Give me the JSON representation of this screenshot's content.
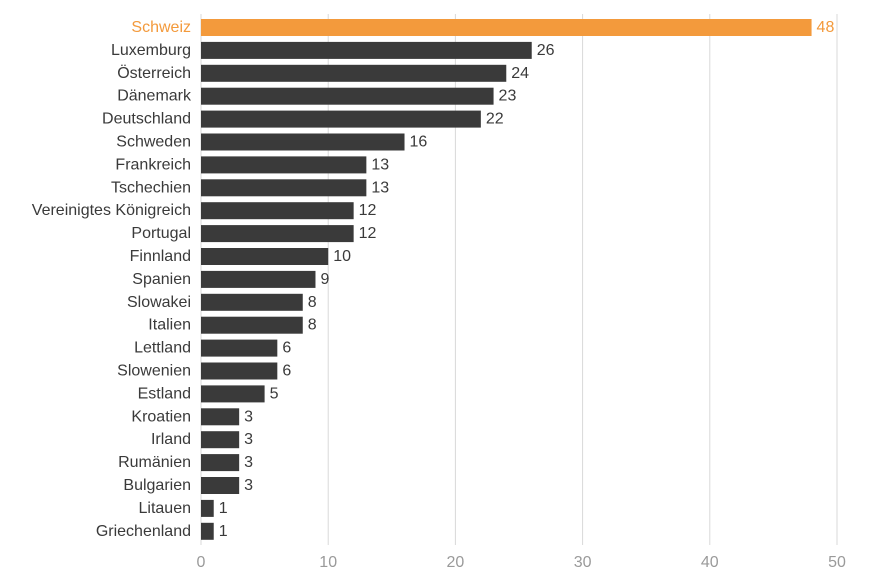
{
  "chart_data": {
    "type": "bar",
    "orientation": "horizontal",
    "categories": [
      "Schweiz",
      "Luxemburg",
      "Österreich",
      "Dänemark",
      "Deutschland",
      "Schweden",
      "Frankreich",
      "Tschechien",
      "Vereinigtes Königreich",
      "Portugal",
      "Finnland",
      "Spanien",
      "Slowakei",
      "Italien",
      "Lettland",
      "Slowenien",
      "Estland",
      "Kroatien",
      "Irland",
      "Rumänien",
      "Bulgarien",
      "Litauen",
      "Griechenland"
    ],
    "values": [
      48,
      26,
      24,
      23,
      22,
      16,
      13,
      13,
      12,
      12,
      10,
      9,
      8,
      8,
      6,
      6,
      5,
      3,
      3,
      3,
      3,
      1,
      1
    ],
    "highlight_category": "Schweiz",
    "xlim": [
      0,
      50
    ],
    "xticks": [
      0,
      10,
      20,
      30,
      40,
      50
    ],
    "grid": "vertical",
    "legend": "none",
    "title": "",
    "xlabel": "",
    "ylabel": ""
  },
  "colors": {
    "bar": "#3a3a3a",
    "highlight": "#f39a3c",
    "grid": "#d9d9d9",
    "text": "#3a3a3a",
    "tick_text": "#9a9a9a"
  }
}
